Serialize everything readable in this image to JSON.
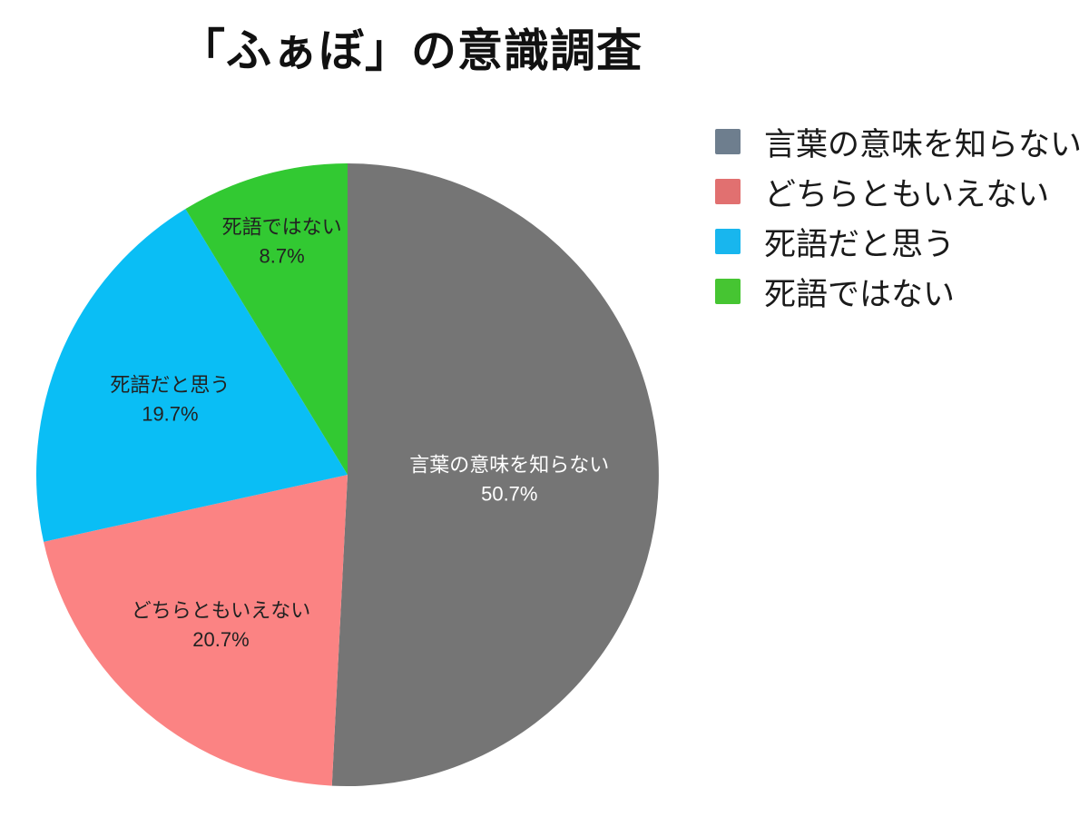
{
  "chart_data": {
    "type": "pie",
    "title": "「ふぁぼ」の意識調査",
    "legend_position": "right",
    "start_angle_deg": 0,
    "direction": "clockwise",
    "background": "#ffffff",
    "title_color": "#111111",
    "legend_text_color": "#1a1a1a",
    "slices": [
      {
        "label": "言葉の意味を知らない",
        "value": 50.7,
        "pct_label": "50.7%",
        "color": "#757575",
        "legend_color": "#6e7e8e",
        "label_text_color": "#ffffff"
      },
      {
        "label": "どちらともいえない",
        "value": 20.7,
        "pct_label": "20.7%",
        "color": "#fb8383",
        "legend_color": "#e17070",
        "label_text_color": "#222222"
      },
      {
        "label": "死語だと思う",
        "value": 19.7,
        "pct_label": "19.7%",
        "color": "#0abef5",
        "legend_color": "#18b6ee",
        "label_text_color": "#222222"
      },
      {
        "label": "死語ではない",
        "value": 8.7,
        "pct_label": "8.7%",
        "color": "#32c932",
        "legend_color": "#46c532",
        "label_text_color": "#222222"
      }
    ]
  }
}
